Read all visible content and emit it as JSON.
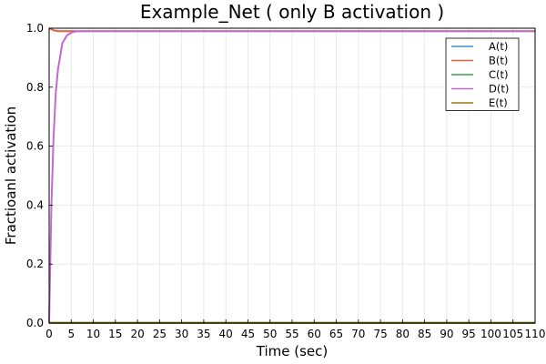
{
  "chart_data": {
    "type": "line",
    "title": "Example_Net ( only B activation )",
    "xlabel": "Time (sec)",
    "ylabel": "Fractioanl activation",
    "xlim": [
      0,
      110
    ],
    "ylim": [
      0,
      1.0
    ],
    "xticks": [
      0,
      5,
      10,
      15,
      20,
      25,
      30,
      35,
      40,
      45,
      50,
      55,
      60,
      65,
      70,
      75,
      80,
      85,
      90,
      95,
      100,
      105,
      110
    ],
    "yticks": [
      0.0,
      0.2,
      0.4,
      0.6,
      0.8,
      1.0
    ],
    "ytick_labels": [
      "0.0",
      "0.2",
      "0.4",
      "0.6",
      "0.8",
      "1.0"
    ],
    "grid": true,
    "legend_position": "top-right",
    "colors": {
      "A(t)": "#3b8fd1",
      "B(t)": "#e0603a",
      "C(t)": "#3aa04a",
      "D(t)": "#c26ad0",
      "E(t)": "#9a7a10"
    },
    "series": [
      {
        "name": "A(t)",
        "x": [
          0,
          110
        ],
        "y": [
          0.0,
          0.0
        ]
      },
      {
        "name": "B(t)",
        "x": [
          0,
          0.3,
          1,
          2,
          3,
          5,
          110
        ],
        "y": [
          1.0,
          0.998,
          0.993,
          0.99,
          0.99,
          0.99,
          0.99
        ]
      },
      {
        "name": "C(t)",
        "x": [
          0,
          110
        ],
        "y": [
          0.0,
          0.0
        ]
      },
      {
        "name": "D(t)",
        "x": [
          0,
          0.5,
          1,
          1.5,
          2,
          3,
          4,
          5,
          6,
          8,
          110
        ],
        "y": [
          0.0,
          0.39,
          0.63,
          0.78,
          0.86,
          0.95,
          0.975,
          0.985,
          0.989,
          0.99,
          0.99
        ]
      },
      {
        "name": "E(t)",
        "x": [
          0,
          110
        ],
        "y": [
          0.001,
          0.001
        ]
      }
    ]
  }
}
